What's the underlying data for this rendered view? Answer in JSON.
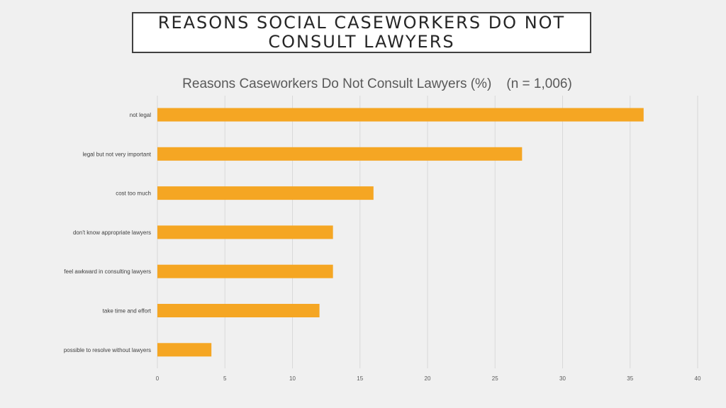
{
  "slide": {
    "title_line1": "REASONS SOCIAL CASEWORKERS DO NOT",
    "title_line2": "CONSULT LAWYERS"
  },
  "chart_data": {
    "type": "bar",
    "orientation": "horizontal",
    "title": "Reasons Caseworkers Do Not Consult Lawyers (%)    (n = 1,006)",
    "categories": [
      "not legal",
      "legal but not very important",
      "cost too much",
      "don't know appropriate lawyers",
      "feel awkward in consulting lawyers",
      "take time and effort",
      "possible to resolve without lawyers"
    ],
    "values": [
      36,
      27,
      16,
      13,
      13,
      12,
      4
    ],
    "xlim": [
      0,
      40
    ],
    "xticks": [
      0,
      5,
      10,
      15,
      20,
      25,
      30,
      35,
      40
    ],
    "grid": true,
    "bar_color": "#f5a623",
    "grid_color": "#d9d9d9",
    "xlabel": "",
    "ylabel": ""
  }
}
